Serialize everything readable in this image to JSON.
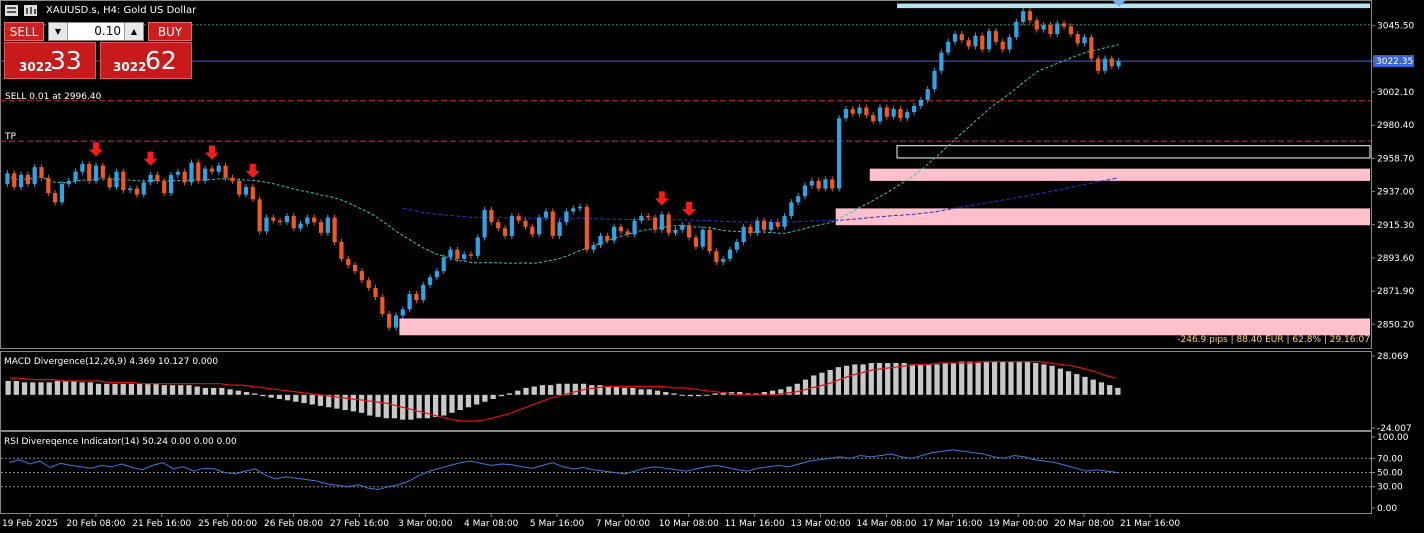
{
  "header": {
    "symbol_title": "XAUUSD.s, H4:  Gold US Dollar",
    "sell_label": "SELL",
    "buy_label": "BUY",
    "volume": "0.10",
    "sell_price_small": "3022",
    "sell_price_big": "33",
    "buy_price_small": "3022",
    "buy_price_big": "62"
  },
  "colors": {
    "bull": "#2ea3e6",
    "bear": "#ef5a21",
    "zone": "#ffc0cb",
    "signal_arrow": "#ff1a1a",
    "macd_hist": "#c8c8c8",
    "macd_signal": "#e01010",
    "rsi_line": "#3c78e0",
    "ma_fast": "#33c3c3",
    "ma_slow": "#2233cc",
    "current_price": "#3a64d8"
  },
  "chart_data": [
    {
      "type": "candlestick",
      "name": "main",
      "title": "XAUUSD.s, H4:  Gold US Dollar",
      "ylim": [
        2836,
        3061
      ],
      "y_ticks": [
        "3045.50",
        "3022.35",
        "3002.10",
        "2980.40",
        "2958.70",
        "2937.00",
        "2915.30",
        "2893.60",
        "2871.90",
        "2850.20"
      ],
      "current_price": 3022.35,
      "current_price_label": "3022.35",
      "candles": [
        {
          "o": 2942,
          "c": 2949
        },
        {
          "o": 2949,
          "c": 2940
        },
        {
          "o": 2940,
          "c": 2948
        },
        {
          "o": 2948,
          "c": 2942
        },
        {
          "o": 2942,
          "c": 2953
        },
        {
          "o": 2953,
          "c": 2946
        },
        {
          "o": 2946,
          "c": 2936
        },
        {
          "o": 2936,
          "c": 2930
        },
        {
          "o": 2930,
          "c": 2942
        },
        {
          "o": 2942,
          "c": 2944
        },
        {
          "o": 2944,
          "c": 2950
        },
        {
          "o": 2950,
          "c": 2955
        },
        {
          "o": 2955,
          "c": 2944
        },
        {
          "o": 2944,
          "c": 2954
        },
        {
          "o": 2954,
          "c": 2946
        },
        {
          "o": 2946,
          "c": 2940
        },
        {
          "o": 2940,
          "c": 2950
        },
        {
          "o": 2950,
          "c": 2938
        },
        {
          "o": 2938,
          "c": 2939
        },
        {
          "o": 2939,
          "c": 2935
        },
        {
          "o": 2935,
          "c": 2943
        },
        {
          "o": 2943,
          "c": 2948
        },
        {
          "o": 2948,
          "c": 2944
        },
        {
          "o": 2944,
          "c": 2936
        },
        {
          "o": 2936,
          "c": 2948
        },
        {
          "o": 2948,
          "c": 2950
        },
        {
          "o": 2950,
          "c": 2943
        },
        {
          "o": 2943,
          "c": 2956
        },
        {
          "o": 2956,
          "c": 2944
        },
        {
          "o": 2944,
          "c": 2952
        },
        {
          "o": 2952,
          "c": 2950
        },
        {
          "o": 2950,
          "c": 2954
        },
        {
          "o": 2954,
          "c": 2946
        },
        {
          "o": 2946,
          "c": 2944
        },
        {
          "o": 2944,
          "c": 2935
        },
        {
          "o": 2935,
          "c": 2940
        },
        {
          "o": 2940,
          "c": 2932
        },
        {
          "o": 2932,
          "c": 2911
        },
        {
          "o": 2911,
          "c": 2920
        },
        {
          "o": 2920,
          "c": 2918
        },
        {
          "o": 2918,
          "c": 2917
        },
        {
          "o": 2917,
          "c": 2921
        },
        {
          "o": 2921,
          "c": 2913
        },
        {
          "o": 2913,
          "c": 2916
        },
        {
          "o": 2916,
          "c": 2920
        },
        {
          "o": 2920,
          "c": 2917
        },
        {
          "o": 2917,
          "c": 2910
        },
        {
          "o": 2910,
          "c": 2920
        },
        {
          "o": 2920,
          "c": 2904
        },
        {
          "o": 2904,
          "c": 2893
        },
        {
          "o": 2893,
          "c": 2889
        },
        {
          "o": 2889,
          "c": 2885
        },
        {
          "o": 2885,
          "c": 2879
        },
        {
          "o": 2879,
          "c": 2874
        },
        {
          "o": 2874,
          "c": 2868
        },
        {
          "o": 2868,
          "c": 2857
        },
        {
          "o": 2857,
          "c": 2848
        },
        {
          "o": 2848,
          "c": 2856
        },
        {
          "o": 2856,
          "c": 2860
        },
        {
          "o": 2860,
          "c": 2870
        },
        {
          "o": 2870,
          "c": 2866
        },
        {
          "o": 2866,
          "c": 2876
        },
        {
          "o": 2876,
          "c": 2881
        },
        {
          "o": 2881,
          "c": 2885
        },
        {
          "o": 2885,
          "c": 2894
        },
        {
          "o": 2894,
          "c": 2899
        },
        {
          "o": 2899,
          "c": 2893
        },
        {
          "o": 2893,
          "c": 2896
        },
        {
          "o": 2896,
          "c": 2895
        },
        {
          "o": 2895,
          "c": 2907
        },
        {
          "o": 2907,
          "c": 2925
        },
        {
          "o": 2925,
          "c": 2917
        },
        {
          "o": 2917,
          "c": 2913
        },
        {
          "o": 2913,
          "c": 2908
        },
        {
          "o": 2908,
          "c": 2921
        },
        {
          "o": 2921,
          "c": 2918
        },
        {
          "o": 2918,
          "c": 2914
        },
        {
          "o": 2914,
          "c": 2909
        },
        {
          "o": 2909,
          "c": 2920
        },
        {
          "o": 2920,
          "c": 2924
        },
        {
          "o": 2924,
          "c": 2908
        },
        {
          "o": 2908,
          "c": 2917
        },
        {
          "o": 2917,
          "c": 2924
        },
        {
          "o": 2924,
          "c": 2926
        },
        {
          "o": 2926,
          "c": 2927
        },
        {
          "o": 2927,
          "c": 2899
        },
        {
          "o": 2899,
          "c": 2902
        },
        {
          "o": 2902,
          "c": 2908
        },
        {
          "o": 2908,
          "c": 2905
        },
        {
          "o": 2905,
          "c": 2914
        },
        {
          "o": 2914,
          "c": 2911
        },
        {
          "o": 2911,
          "c": 2909
        },
        {
          "o": 2909,
          "c": 2918
        },
        {
          "o": 2918,
          "c": 2921
        },
        {
          "o": 2921,
          "c": 2920
        },
        {
          "o": 2920,
          "c": 2912
        },
        {
          "o": 2912,
          "c": 2922
        },
        {
          "o": 2922,
          "c": 2910
        },
        {
          "o": 2910,
          "c": 2912
        },
        {
          "o": 2912,
          "c": 2915
        },
        {
          "o": 2915,
          "c": 2907
        },
        {
          "o": 2907,
          "c": 2901
        },
        {
          "o": 2901,
          "c": 2912
        },
        {
          "o": 2912,
          "c": 2898
        },
        {
          "o": 2898,
          "c": 2891
        },
        {
          "o": 2891,
          "c": 2893
        },
        {
          "o": 2893,
          "c": 2899
        },
        {
          "o": 2899,
          "c": 2904
        },
        {
          "o": 2904,
          "c": 2914
        },
        {
          "o": 2914,
          "c": 2910
        },
        {
          "o": 2910,
          "c": 2918
        },
        {
          "o": 2918,
          "c": 2912
        },
        {
          "o": 2912,
          "c": 2917
        },
        {
          "o": 2917,
          "c": 2914
        },
        {
          "o": 2914,
          "c": 2921
        },
        {
          "o": 2921,
          "c": 2930
        },
        {
          "o": 2930,
          "c": 2934
        },
        {
          "o": 2934,
          "c": 2941
        },
        {
          "o": 2941,
          "c": 2944
        },
        {
          "o": 2944,
          "c": 2939
        },
        {
          "o": 2939,
          "c": 2945
        },
        {
          "o": 2945,
          "c": 2939
        },
        {
          "o": 2939,
          "c": 2985
        },
        {
          "o": 2985,
          "c": 2991
        },
        {
          "o": 2991,
          "c": 2988
        },
        {
          "o": 2988,
          "c": 2992
        },
        {
          "o": 2992,
          "c": 2987
        },
        {
          "o": 2987,
          "c": 2983
        },
        {
          "o": 2983,
          "c": 2992
        },
        {
          "o": 2992,
          "c": 2986
        },
        {
          "o": 2986,
          "c": 2991
        },
        {
          "o": 2991,
          "c": 2985
        },
        {
          "o": 2985,
          "c": 2989
        },
        {
          "o": 2989,
          "c": 2993
        },
        {
          "o": 2993,
          "c": 2997
        },
        {
          "o": 2997,
          "c": 3004
        },
        {
          "o": 3004,
          "c": 3016
        },
        {
          "o": 3016,
          "c": 3028
        },
        {
          "o": 3028,
          "c": 3035
        },
        {
          "o": 3035,
          "c": 3040
        },
        {
          "o": 3040,
          "c": 3036
        },
        {
          "o": 3036,
          "c": 3032
        },
        {
          "o": 3032,
          "c": 3039
        },
        {
          "o": 3039,
          "c": 3030
        },
        {
          "o": 3030,
          "c": 3042
        },
        {
          "o": 3042,
          "c": 3035
        },
        {
          "o": 3035,
          "c": 3030
        },
        {
          "o": 3030,
          "c": 3038
        },
        {
          "o": 3038,
          "c": 3048
        },
        {
          "o": 3048,
          "c": 3055
        },
        {
          "o": 3055,
          "c": 3049
        },
        {
          "o": 3049,
          "c": 3043
        },
        {
          "o": 3043,
          "c": 3046
        },
        {
          "o": 3046,
          "c": 3040
        },
        {
          "o": 3040,
          "c": 3047
        },
        {
          "o": 3047,
          "c": 3045
        },
        {
          "o": 3045,
          "c": 3040
        },
        {
          "o": 3040,
          "c": 3034
        },
        {
          "o": 3034,
          "c": 3038
        },
        {
          "o": 3038,
          "c": 3024
        },
        {
          "o": 3024,
          "c": 3016
        },
        {
          "o": 3016,
          "c": 3024
        },
        {
          "o": 3024,
          "c": 3019
        },
        {
          "o": 3019,
          "c": 3022.35
        }
      ],
      "x_ticks": [
        "19 Feb 2025",
        "20 Feb 08:00",
        "21 Feb 16:00",
        "25 Feb 00:00",
        "26 Feb 08:00",
        "27 Feb 16:00",
        "3 Mar 00:00",
        "4 Mar 08:00",
        "5 Mar 16:00",
        "7 Mar 00:00",
        "10 Mar 08:00",
        "11 Mar 16:00",
        "13 Mar 00:00",
        "14 Mar 08:00",
        "17 Mar 16:00",
        "19 Mar 00:00",
        "20 Mar 08:00",
        "21 Mar 16:00"
      ],
      "levels": [
        {
          "label": "SELL 0.01 at 2996.40",
          "price": 2996.4
        },
        {
          "label": "TP",
          "price": 2970.0
        }
      ],
      "info_text": "-246.9 pips | 88.40 EUR | 62.8% | 29.16:07"
    },
    {
      "type": "histogram",
      "name": "MACD Divergence(12,26,9) 4.369 10.127 0.000",
      "title": "MACD Divergence(12,26,9) 4.369 10.127 0.000",
      "ylim": [
        -24.007,
        28.069
      ],
      "y_ticks": [
        "28.069",
        "-24.007"
      ],
      "values": [
        10,
        10,
        9,
        9,
        9,
        9,
        10,
        10,
        10,
        9,
        9,
        8,
        8,
        8,
        8,
        8,
        8,
        8,
        8,
        7,
        7,
        7,
        7,
        6,
        5,
        5,
        5,
        4,
        3,
        2,
        1,
        -1,
        -2,
        -3,
        -4,
        -5,
        -6,
        -7,
        -8,
        -9,
        -10,
        -11,
        -12,
        -13,
        -15,
        -16,
        -17,
        -17,
        -18,
        -18,
        -17,
        -17,
        -16,
        -15,
        -13,
        -11,
        -9,
        -7,
        -5,
        -3,
        -1,
        1,
        3,
        5,
        6,
        7,
        7,
        8,
        8,
        8,
        8,
        7,
        7,
        6,
        6,
        5,
        5,
        4,
        4,
        3,
        2,
        1,
        0,
        -1,
        -1,
        0,
        1,
        2,
        2,
        2,
        1,
        1,
        2,
        3,
        4,
        6,
        8,
        11,
        14,
        16,
        18,
        20,
        21,
        22,
        22,
        23,
        23,
        23,
        23,
        23,
        22,
        22,
        22,
        22,
        23,
        23,
        24,
        24,
        24,
        24,
        24,
        24,
        24,
        24,
        24,
        23,
        22,
        21,
        19,
        17,
        15,
        13,
        11,
        9,
        7,
        5
      ],
      "signal": [
        12,
        12,
        11,
        11,
        11,
        10,
        10,
        10,
        10,
        9,
        9,
        9,
        8,
        8,
        8,
        8,
        8,
        8,
        8,
        8,
        7,
        7,
        6,
        5,
        4,
        3,
        2,
        1,
        0,
        -1,
        -2,
        -3,
        -4,
        -5,
        -6,
        -8,
        -10,
        -12,
        -14,
        -16,
        -18,
        -19,
        -19,
        -18,
        -16,
        -14,
        -11,
        -8,
        -5,
        -2,
        0,
        2,
        4,
        5,
        6,
        6,
        6,
        6,
        6,
        6,
        5,
        5,
        4,
        3,
        2,
        1,
        0,
        0,
        0,
        0,
        1,
        2,
        4,
        6,
        8,
        11,
        14,
        16,
        18,
        19,
        20,
        21,
        22,
        22,
        23,
        23,
        23,
        23,
        24,
        24,
        24,
        24,
        24,
        24,
        23,
        22,
        21,
        19,
        17,
        14,
        12
      ]
    },
    {
      "type": "line",
      "name": "RSI Divereqence Indicator(14) 50.24 0.00 0.00 0.00",
      "title": "RSI Divereqence Indicator(14) 50.24 0.00 0.00 0.00",
      "ylim": [
        0,
        100
      ],
      "y_ticks": [
        "100.00",
        "70.00",
        "50.00",
        "30.00",
        "0.00"
      ],
      "levels": [
        70,
        50,
        30
      ],
      "values": [
        64,
        68,
        62,
        66,
        57,
        63,
        60,
        58,
        56,
        60,
        58,
        62,
        57,
        54,
        60,
        64,
        55,
        58,
        52,
        56,
        55,
        50,
        48,
        52,
        55,
        46,
        41,
        44,
        42,
        40,
        38,
        34,
        32,
        30,
        33,
        28,
        26,
        30,
        33,
        38,
        46,
        52,
        56,
        60,
        64,
        66,
        63,
        60,
        62,
        61,
        58,
        56,
        60,
        64,
        58,
        55,
        57,
        54,
        52,
        50,
        48,
        52,
        56,
        58,
        56,
        54,
        52,
        55,
        58,
        60,
        57,
        54,
        52,
        56,
        58,
        60,
        58,
        62,
        66,
        68,
        70,
        72,
        70,
        74,
        72,
        74,
        76,
        72,
        70,
        74,
        78,
        80,
        82,
        80,
        78,
        76,
        72,
        70,
        74,
        72,
        68,
        66,
        64,
        60,
        56,
        52,
        54,
        52,
        50
      ]
    }
  ]
}
